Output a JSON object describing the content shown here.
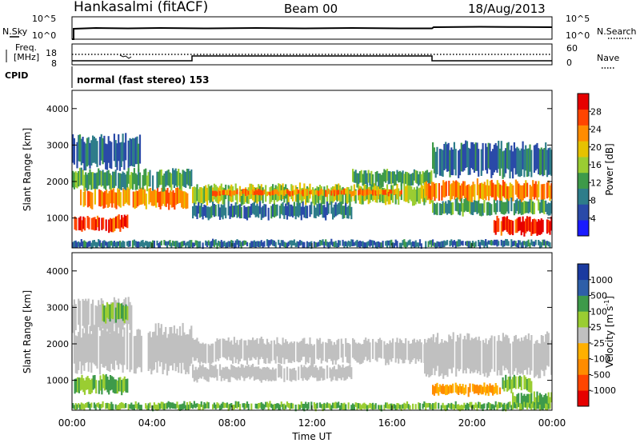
{
  "header": {
    "station": "Hankasalmi (fitACF)",
    "beam": "Beam 00",
    "date": "18/Aug/2013"
  },
  "status_panel": {
    "nsky_label": "N.Sky",
    "nsky_ticks": [
      "10^5",
      "10^0"
    ],
    "nsearch_label": "N.Search",
    "nsearch_ticks": [
      "10^5",
      "10^0"
    ],
    "freq_label_1": "Freq.",
    "freq_label_2": "[MHz]",
    "freq_ticks": [
      "18",
      "8"
    ],
    "nave_label": "Nave",
    "nave_ticks": [
      "60",
      "0"
    ],
    "cpid_label": "CPID",
    "cpid_value": "normal (fast stereo) 153"
  },
  "colors": {
    "power": [
      "#1a1aff",
      "#2a4aa8",
      "#2e7d8a",
      "#3e9a4a",
      "#9acd32",
      "#e6c200",
      "#ff8c00",
      "#ff4500",
      "#e60000"
    ],
    "velocity": [
      "#e60000",
      "#ff4500",
      "#ff8c00",
      "#ffb000",
      "#c0c0c0",
      "#9acd32",
      "#3e9a4a",
      "#2e5fa8",
      "#1a3aa0"
    ]
  },
  "chart_data": [
    {
      "type": "heatmap",
      "name": "power",
      "ylabel": "Slant Range [km]",
      "y_ticks": [
        1000,
        2000,
        3000,
        4000
      ],
      "ylim": [
        180,
        4500
      ],
      "colorbar_label": "Power [dB]",
      "colorbar_ticks": [
        4,
        8,
        12,
        16,
        20,
        24,
        28
      ],
      "colorbar_range": [
        0,
        32
      ],
      "bands": [
        {
          "t0": 0.1,
          "t1": 2.8,
          "r0": 650,
          "r1": 1050,
          "value": 28
        },
        {
          "t0": 0.4,
          "t1": 5.8,
          "r0": 1300,
          "r1": 1800,
          "value": 24
        },
        {
          "t0": 0.0,
          "t1": 6.0,
          "r0": 1800,
          "r1": 2300,
          "value": 12
        },
        {
          "t0": 0.0,
          "t1": 3.5,
          "r0": 2400,
          "r1": 3200,
          "value": 8
        },
        {
          "t0": 6.0,
          "t1": 18.0,
          "r0": 1400,
          "r1": 1900,
          "value": 16
        },
        {
          "t0": 7.0,
          "t1": 16.5,
          "r0": 1600,
          "r1": 1800,
          "value": 24
        },
        {
          "t0": 6.0,
          "t1": 14.0,
          "r0": 1000,
          "r1": 1400,
          "value": 8
        },
        {
          "t0": 14.0,
          "t1": 18.0,
          "r0": 1900,
          "r1": 2300,
          "value": 12
        },
        {
          "t0": 17.6,
          "t1": 24.0,
          "r0": 1500,
          "r1": 2000,
          "value": 24
        },
        {
          "t0": 18.0,
          "t1": 24.0,
          "r0": 1100,
          "r1": 1500,
          "value": 12
        },
        {
          "t0": 21.0,
          "t1": 24.0,
          "r0": 550,
          "r1": 1000,
          "value": 28
        },
        {
          "t0": 18.0,
          "t1": 24.0,
          "r0": 2200,
          "r1": 3000,
          "value": 8
        },
        {
          "t0": 0.0,
          "t1": 24.0,
          "r0": 180,
          "r1": 400,
          "value": 8
        }
      ]
    },
    {
      "type": "heatmap",
      "name": "velocity",
      "ylabel": "Slant Range [km]",
      "xlabel": "Time UT",
      "x_ticks": [
        "00:00",
        "04:00",
        "08:00",
        "12:00",
        "16:00",
        "20:00",
        "00:00"
      ],
      "xlim": [
        0,
        24
      ],
      "y_ticks": [
        1000,
        2000,
        3000,
        4000
      ],
      "ylim": [
        180,
        4500
      ],
      "colorbar_label": "Velocity [m s^-1]",
      "colorbar_ticks": [
        "1000",
        "500",
        "100",
        "25",
        "-25",
        "-100",
        "-500",
        "-1000"
      ],
      "bands": [
        {
          "t0": 0.1,
          "t1": 2.8,
          "r0": 650,
          "r1": 1100,
          "value": 100
        },
        {
          "t0": 0.0,
          "t1": 6.0,
          "r0": 1300,
          "r1": 2400,
          "value": 0
        },
        {
          "t0": 0.0,
          "t1": 3.0,
          "r0": 2400,
          "r1": 3200,
          "value": 0
        },
        {
          "t0": 1.5,
          "t1": 2.8,
          "r0": 2600,
          "r1": 3100,
          "value": 100
        },
        {
          "t0": 6.0,
          "t1": 18.0,
          "r0": 1500,
          "r1": 2100,
          "value": 0
        },
        {
          "t0": 6.0,
          "t1": 14.0,
          "r0": 1000,
          "r1": 1400,
          "value": 0
        },
        {
          "t0": 17.6,
          "t1": 24.0,
          "r0": 1200,
          "r1": 2200,
          "value": 0
        },
        {
          "t0": 18.0,
          "t1": 21.5,
          "r0": 600,
          "r1": 900,
          "value": -100
        },
        {
          "t0": 21.5,
          "t1": 23.0,
          "r0": 700,
          "r1": 1100,
          "value": 100
        },
        {
          "t0": 22.0,
          "t1": 24.0,
          "r0": 300,
          "r1": 650,
          "value": 100
        },
        {
          "t0": 0.0,
          "t1": 24.0,
          "r0": 180,
          "r1": 400,
          "value": 100
        }
      ]
    }
  ]
}
